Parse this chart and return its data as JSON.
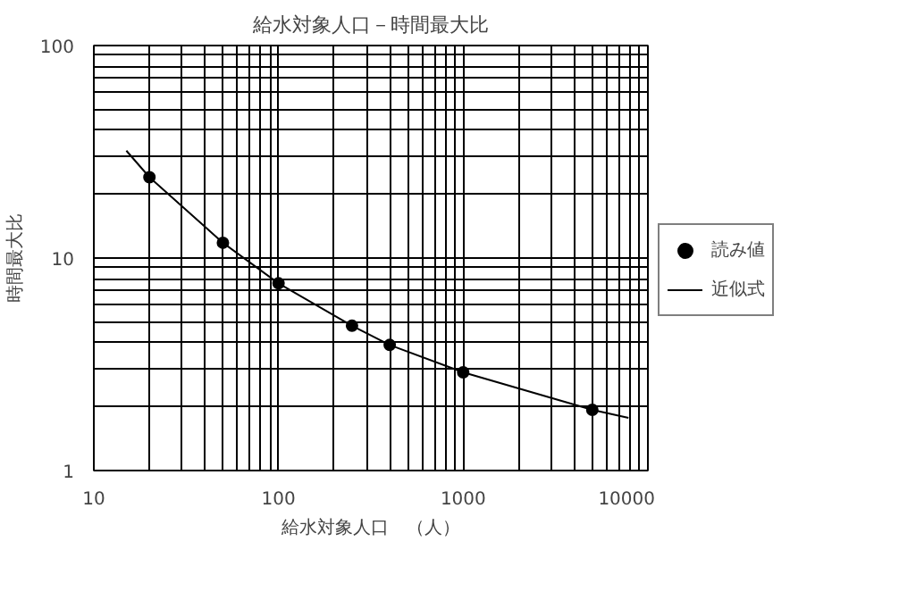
{
  "chart_data": {
    "type": "scatter",
    "title": "給水対象人口－時間最大比",
    "xlabel": "給水対象人口　（人）",
    "ylabel": "時間最大比",
    "log": "xy",
    "xlim": [
      10,
      10000
    ],
    "ylim": [
      1,
      100
    ],
    "xticks": [
      10,
      100,
      1000,
      10000
    ],
    "yticks": [
      1,
      10,
      100
    ],
    "grid": true,
    "legend": "right",
    "series": [
      {
        "name": "読み値",
        "marker": "circle",
        "color": "#000000",
        "x": [
          20,
          50,
          100,
          250,
          400,
          1000,
          5000
        ],
        "values": [
          24,
          11.8,
          7.6,
          4.8,
          3.9,
          2.9,
          1.93
        ]
      },
      {
        "name": "近似式",
        "type": "line",
        "marker": "none",
        "color": "#000000",
        "x": [
          15,
          20,
          50,
          100,
          250,
          400,
          1000,
          5000,
          7850
        ],
        "values": [
          32,
          24,
          11.8,
          7.6,
          4.8,
          3.9,
          2.9,
          1.93,
          1.77
        ]
      }
    ]
  }
}
